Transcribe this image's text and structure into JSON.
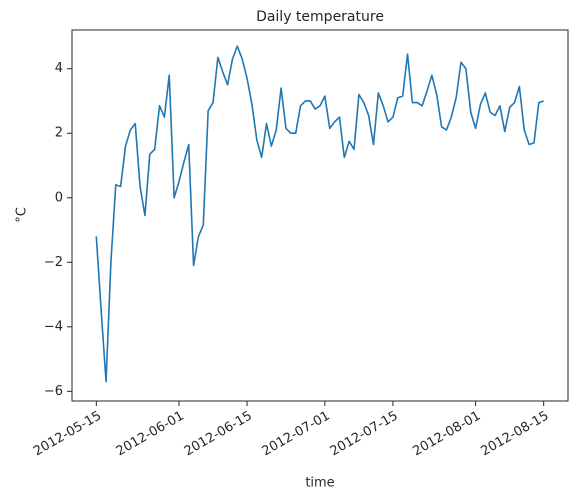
{
  "chart_data": {
    "type": "line",
    "title": "Daily temperature",
    "xlabel": "time",
    "ylabel": "°C",
    "x": [
      "2012-05-15",
      "2012-05-16",
      "2012-05-17",
      "2012-05-18",
      "2012-05-19",
      "2012-05-20",
      "2012-05-21",
      "2012-05-22",
      "2012-05-23",
      "2012-05-24",
      "2012-05-25",
      "2012-05-26",
      "2012-05-27",
      "2012-05-28",
      "2012-05-29",
      "2012-05-30",
      "2012-05-31",
      "2012-06-01",
      "2012-06-02",
      "2012-06-03",
      "2012-06-04",
      "2012-06-05",
      "2012-06-06",
      "2012-06-07",
      "2012-06-08",
      "2012-06-09",
      "2012-06-10",
      "2012-06-11",
      "2012-06-12",
      "2012-06-13",
      "2012-06-14",
      "2012-06-15",
      "2012-06-16",
      "2012-06-17",
      "2012-06-18",
      "2012-06-19",
      "2012-06-20",
      "2012-06-21",
      "2012-06-22",
      "2012-06-23",
      "2012-06-24",
      "2012-06-25",
      "2012-06-26",
      "2012-06-27",
      "2012-06-28",
      "2012-06-29",
      "2012-06-30",
      "2012-07-01",
      "2012-07-02",
      "2012-07-03",
      "2012-07-04",
      "2012-07-05",
      "2012-07-06",
      "2012-07-07",
      "2012-07-08",
      "2012-07-09",
      "2012-07-10",
      "2012-07-11",
      "2012-07-12",
      "2012-07-13",
      "2012-07-14",
      "2012-07-15",
      "2012-07-16",
      "2012-07-17",
      "2012-07-18",
      "2012-07-19",
      "2012-07-20",
      "2012-07-21",
      "2012-07-22",
      "2012-07-23",
      "2012-07-24",
      "2012-07-25",
      "2012-07-26",
      "2012-07-27",
      "2012-07-28",
      "2012-07-29",
      "2012-07-30",
      "2012-07-31",
      "2012-08-01",
      "2012-08-02",
      "2012-08-03",
      "2012-08-04",
      "2012-08-05",
      "2012-08-06",
      "2012-08-07",
      "2012-08-08",
      "2012-08-09",
      "2012-08-10",
      "2012-08-11",
      "2012-08-12",
      "2012-08-13",
      "2012-08-14",
      "2012-08-15"
    ],
    "series": [
      {
        "name": "temperature",
        "color": "#1f77b4",
        "values": [
          -1.2,
          -3.5,
          -5.7,
          -2.0,
          0.4,
          0.35,
          1.6,
          2.1,
          2.3,
          0.35,
          -0.55,
          1.35,
          1.5,
          2.85,
          2.5,
          3.8,
          0.0,
          0.5,
          1.1,
          1.65,
          -2.1,
          -1.2,
          -0.85,
          2.7,
          2.95,
          4.35,
          3.9,
          3.5,
          4.3,
          4.7,
          4.3,
          3.7,
          2.9,
          1.8,
          1.25,
          2.3,
          1.6,
          2.1,
          3.4,
          2.15,
          2.0,
          2.0,
          2.85,
          3.0,
          3.0,
          2.75,
          2.85,
          3.15,
          2.15,
          2.35,
          2.5,
          1.25,
          1.75,
          1.5,
          3.2,
          2.95,
          2.55,
          1.65,
          3.25,
          2.85,
          2.35,
          2.5,
          3.1,
          3.15,
          4.45,
          2.95,
          2.95,
          2.85,
          3.3,
          3.8,
          3.2,
          2.2,
          2.1,
          2.5,
          3.1,
          4.2,
          4.0,
          2.65,
          2.15,
          2.9,
          3.25,
          2.65,
          2.55,
          2.85,
          2.05,
          2.8,
          2.95,
          3.45,
          2.1,
          1.65,
          1.7,
          2.95,
          3.0
        ]
      }
    ],
    "xlim": [
      "2012-05-10",
      "2012-08-20"
    ],
    "xticks": [
      "2012-05-15",
      "2012-06-01",
      "2012-06-15",
      "2012-07-01",
      "2012-07-15",
      "2012-08-01",
      "2012-08-15"
    ],
    "ylim": [
      -6.3,
      5.2
    ],
    "yticks": [
      {
        "value": -6,
        "label": "−6"
      },
      {
        "value": -4,
        "label": "−4"
      },
      {
        "value": -2,
        "label": "−2"
      },
      0,
      2,
      4
    ],
    "grid": false
  }
}
